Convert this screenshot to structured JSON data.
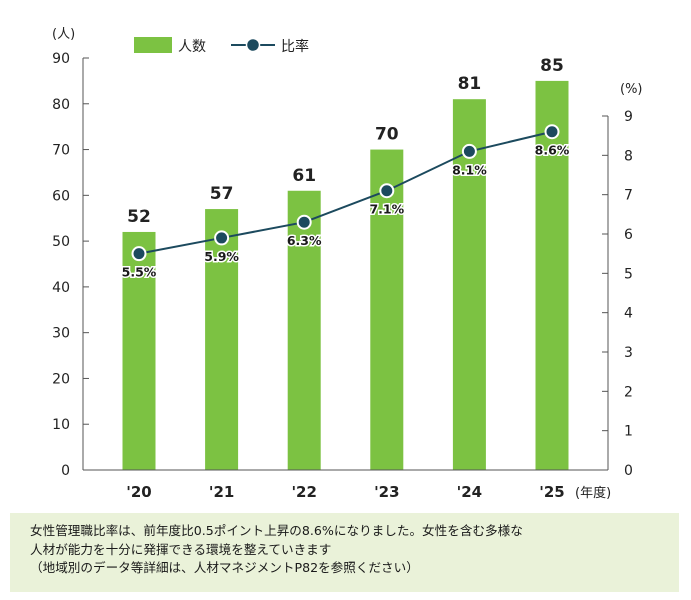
{
  "chart_data": {
    "type": "bar+line",
    "categories": [
      "'20",
      "'21",
      "'22",
      "'23",
      "'24",
      "'25"
    ],
    "x_unit": "(年度)",
    "series": [
      {
        "name": "人数",
        "kind": "bar",
        "axis": "left",
        "values": [
          52,
          57,
          61,
          70,
          81,
          85
        ]
      },
      {
        "name": "比率",
        "kind": "line",
        "axis": "right",
        "values": [
          5.5,
          5.9,
          6.3,
          7.1,
          8.1,
          8.6
        ],
        "labels": [
          "5.5%",
          "5.9%",
          "6.3%",
          "7.1%",
          "8.1%",
          "8.6%"
        ]
      }
    ],
    "y_left": {
      "unit": "(人)",
      "ylim": [
        0,
        90
      ],
      "ticks": [
        0,
        10,
        20,
        30,
        40,
        50,
        60,
        70,
        80,
        90
      ]
    },
    "y_right": {
      "unit": "(%)",
      "ylim": [
        0,
        9
      ],
      "ticks": [
        0,
        1,
        2,
        3,
        4,
        5,
        6,
        7,
        8,
        9
      ]
    },
    "grid": false,
    "legend_position": "top-left",
    "colors": {
      "bar": "#7cc242",
      "line": "#1c4a5e",
      "axis": "#555555"
    }
  },
  "note": {
    "lines": [
      "女性管理職比率は、前年度比0.5ポイント上昇の8.6%になりました。女性を含む多様な",
      "人材が能力を十分に発揮できる環境を整えていきます",
      "（地域別のデータ等詳細は、人材マネジメントP82を参照ください）"
    ]
  }
}
